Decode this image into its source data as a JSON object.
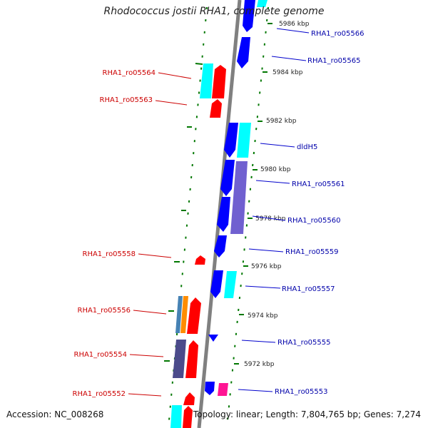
{
  "title": "Rhodococcus jostii RHA1, complete genome",
  "footer": {
    "accession": "Accession: NC_008268",
    "summary": "Topology: linear; Length: 7,804,765 bp; Genes: 7,274"
  },
  "colors": {
    "forward_gene": "#ff0000",
    "reverse_gene": "#0000ff",
    "cyan_gene": "#00ffff",
    "forward_label": "#cc0000",
    "reverse_label": "#0000aa",
    "backbone": "#808080",
    "tick": "#007700"
  },
  "scale_labels": [
    "5986 kbp",
    "5984 kbp",
    "5982 kbp",
    "5980 kbp",
    "5978 kbp",
    "5976 kbp",
    "5974 kbp",
    "5972 kbp"
  ],
  "left_genes": [
    "RHA1_ro05564",
    "RHA1_ro05563",
    "RHA1_ro05558",
    "RHA1_ro05556",
    "RHA1_ro05554",
    "RHA1_ro05552"
  ],
  "right_genes": [
    "RHA1_ro05566",
    "RHA1_ro05565",
    "dldH5",
    "RHA1_ro05561",
    "RHA1_ro05560",
    "RHA1_ro05559",
    "RHA1_ro05557",
    "RHA1_ro05555",
    "RHA1_ro05553"
  ]
}
